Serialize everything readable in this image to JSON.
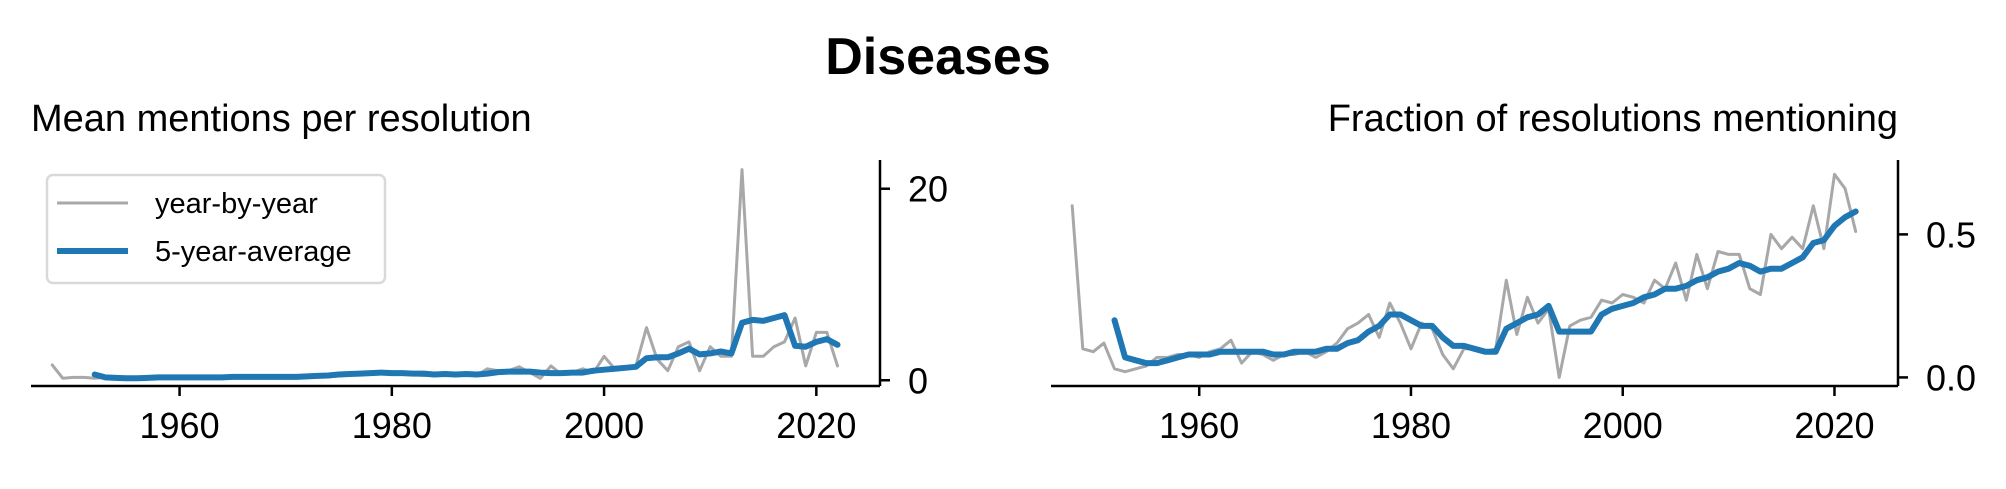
{
  "figure_title": "Diseases",
  "colors": {
    "yearly": "#a8a8a8",
    "average": "#1f77b4",
    "axis": "#000000",
    "legend_border": "#d9d9d9"
  },
  "legend": {
    "items": [
      {
        "label": "year-by-year",
        "series": "yearly"
      },
      {
        "label": "5-year-average",
        "series": "average"
      }
    ]
  },
  "chart_data": [
    {
      "type": "line",
      "title": "Mean mentions per resolution",
      "xlim": [
        1946,
        2026
      ],
      "ylim": [
        -0.6,
        23
      ],
      "xticks": [
        1960,
        1980,
        2000,
        2020
      ],
      "yticks": [
        0,
        20
      ],
      "ytick_labels": [
        "0",
        "20"
      ],
      "y_axis_side": "right",
      "grid": false,
      "legend_position": "upper-left",
      "series": [
        {
          "name": "year-by-year",
          "color_key": "yearly",
          "x": [
            1948,
            1949,
            1950,
            1951,
            1952,
            1953,
            1954,
            1955,
            1956,
            1957,
            1958,
            1959,
            1960,
            1961,
            1962,
            1963,
            1964,
            1965,
            1966,
            1967,
            1968,
            1969,
            1970,
            1971,
            1972,
            1973,
            1974,
            1975,
            1976,
            1977,
            1978,
            1979,
            1980,
            1981,
            1982,
            1983,
            1984,
            1985,
            1986,
            1987,
            1988,
            1989,
            1990,
            1991,
            1992,
            1993,
            1994,
            1995,
            1996,
            1997,
            1998,
            1999,
            2000,
            2001,
            2002,
            2003,
            2004,
            2005,
            2006,
            2007,
            2008,
            2009,
            2010,
            2011,
            2012,
            2013,
            2014,
            2015,
            2016,
            2017,
            2018,
            2019,
            2020,
            2021,
            2022
          ],
          "y": [
            1.6,
            0.2,
            0.3,
            0.3,
            0.2,
            0.3,
            0.2,
            0.3,
            0.2,
            0.3,
            0.3,
            0.3,
            0.3,
            0.4,
            0.4,
            0.3,
            0.4,
            0.4,
            0.4,
            0.4,
            0.4,
            0.3,
            0.4,
            0.4,
            0.4,
            0.5,
            0.6,
            0.6,
            0.8,
            0.7,
            0.8,
            0.8,
            0.6,
            0.8,
            0.6,
            0.5,
            0.7,
            0.5,
            0.6,
            0.7,
            0.5,
            1.2,
            1.0,
            1.0,
            1.4,
            0.8,
            0.2,
            1.5,
            0.6,
            0.8,
            1.2,
            0.8,
            2.5,
            1.2,
            1.4,
            1.5,
            5.5,
            2.2,
            1.0,
            3.5,
            4.0,
            1.0,
            3.5,
            2.5,
            2.5,
            22.0,
            2.5,
            2.5,
            3.5,
            4.0,
            6.5,
            1.5,
            5.0,
            5.0,
            1.5
          ]
        },
        {
          "name": "5-year-average",
          "color_key": "average",
          "x": [
            1952,
            1953,
            1954,
            1955,
            1956,
            1957,
            1958,
            1959,
            1960,
            1961,
            1962,
            1963,
            1964,
            1965,
            1966,
            1967,
            1968,
            1969,
            1970,
            1971,
            1972,
            1973,
            1974,
            1975,
            1976,
            1977,
            1978,
            1979,
            1980,
            1981,
            1982,
            1983,
            1984,
            1985,
            1986,
            1987,
            1988,
            1989,
            1990,
            1991,
            1992,
            1993,
            1994,
            1995,
            1996,
            1997,
            1998,
            1999,
            2000,
            2001,
            2002,
            2003,
            2004,
            2005,
            2006,
            2007,
            2008,
            2009,
            2010,
            2011,
            2012,
            2013,
            2014,
            2015,
            2016,
            2017,
            2018,
            2019,
            2020,
            2021,
            2022
          ],
          "y": [
            0.6,
            0.3,
            0.25,
            0.2,
            0.2,
            0.25,
            0.3,
            0.3,
            0.3,
            0.3,
            0.3,
            0.3,
            0.3,
            0.35,
            0.35,
            0.35,
            0.35,
            0.35,
            0.35,
            0.35,
            0.4,
            0.45,
            0.5,
            0.6,
            0.65,
            0.7,
            0.75,
            0.8,
            0.75,
            0.75,
            0.7,
            0.7,
            0.6,
            0.65,
            0.6,
            0.65,
            0.6,
            0.7,
            0.85,
            0.9,
            0.9,
            0.9,
            0.8,
            0.75,
            0.75,
            0.8,
            0.8,
            1.0,
            1.1,
            1.2,
            1.3,
            1.4,
            2.3,
            2.4,
            2.4,
            2.8,
            3.3,
            2.7,
            2.8,
            3.0,
            2.8,
            6.0,
            6.3,
            6.2,
            6.5,
            6.8,
            3.6,
            3.5,
            4.0,
            4.3,
            3.7
          ]
        }
      ]
    },
    {
      "type": "line",
      "title": "Fraction of resolutions mentioning",
      "xlim": [
        1946,
        2026
      ],
      "ylim": [
        -0.03,
        0.76
      ],
      "xticks": [
        1960,
        1980,
        2000,
        2020
      ],
      "yticks": [
        0,
        0.5
      ],
      "ytick_labels": [
        "0.0",
        "0.5"
      ],
      "y_axis_side": "right",
      "grid": false,
      "series": [
        {
          "name": "year-by-year",
          "color_key": "yearly",
          "x": [
            1948,
            1949,
            1950,
            1951,
            1952,
            1953,
            1954,
            1955,
            1956,
            1957,
            1958,
            1959,
            1960,
            1961,
            1962,
            1963,
            1964,
            1965,
            1966,
            1967,
            1968,
            1969,
            1970,
            1971,
            1972,
            1973,
            1974,
            1975,
            1976,
            1977,
            1978,
            1979,
            1980,
            1981,
            1982,
            1983,
            1984,
            1985,
            1986,
            1987,
            1988,
            1989,
            1990,
            1991,
            1992,
            1993,
            1994,
            1995,
            1996,
            1997,
            1998,
            1999,
            2000,
            2001,
            2002,
            2003,
            2004,
            2005,
            2006,
            2007,
            2008,
            2009,
            2010,
            2011,
            2012,
            2013,
            2014,
            2015,
            2016,
            2017,
            2018,
            2019,
            2020,
            2021,
            2022
          ],
          "y": [
            0.6,
            0.1,
            0.09,
            0.12,
            0.03,
            0.02,
            0.03,
            0.04,
            0.07,
            0.07,
            0.08,
            0.08,
            0.07,
            0.09,
            0.1,
            0.13,
            0.05,
            0.09,
            0.08,
            0.06,
            0.08,
            0.08,
            0.09,
            0.07,
            0.09,
            0.12,
            0.17,
            0.19,
            0.22,
            0.14,
            0.26,
            0.19,
            0.1,
            0.19,
            0.17,
            0.08,
            0.03,
            0.1,
            0.1,
            0.09,
            0.1,
            0.34,
            0.15,
            0.28,
            0.19,
            0.24,
            0.0,
            0.18,
            0.2,
            0.21,
            0.27,
            0.26,
            0.29,
            0.28,
            0.26,
            0.34,
            0.31,
            0.4,
            0.27,
            0.43,
            0.31,
            0.44,
            0.43,
            0.43,
            0.31,
            0.29,
            0.5,
            0.45,
            0.49,
            0.45,
            0.6,
            0.45,
            0.71,
            0.66,
            0.51
          ]
        },
        {
          "name": "5-year-average",
          "color_key": "average",
          "x": [
            1952,
            1953,
            1954,
            1955,
            1956,
            1957,
            1958,
            1959,
            1960,
            1961,
            1962,
            1963,
            1964,
            1965,
            1966,
            1967,
            1968,
            1969,
            1970,
            1971,
            1972,
            1973,
            1974,
            1975,
            1976,
            1977,
            1978,
            1979,
            1980,
            1981,
            1982,
            1983,
            1984,
            1985,
            1986,
            1987,
            1988,
            1989,
            1990,
            1991,
            1992,
            1993,
            1994,
            1995,
            1996,
            1997,
            1998,
            1999,
            2000,
            2001,
            2002,
            2003,
            2004,
            2005,
            2006,
            2007,
            2008,
            2009,
            2010,
            2011,
            2012,
            2013,
            2014,
            2015,
            2016,
            2017,
            2018,
            2019,
            2020,
            2021,
            2022
          ],
          "y": [
            0.2,
            0.07,
            0.06,
            0.05,
            0.05,
            0.06,
            0.07,
            0.08,
            0.08,
            0.08,
            0.09,
            0.09,
            0.09,
            0.09,
            0.09,
            0.08,
            0.08,
            0.09,
            0.09,
            0.09,
            0.1,
            0.1,
            0.12,
            0.13,
            0.16,
            0.18,
            0.22,
            0.22,
            0.2,
            0.18,
            0.18,
            0.14,
            0.11,
            0.11,
            0.1,
            0.09,
            0.09,
            0.17,
            0.19,
            0.21,
            0.22,
            0.25,
            0.16,
            0.16,
            0.16,
            0.16,
            0.22,
            0.24,
            0.25,
            0.26,
            0.28,
            0.29,
            0.31,
            0.31,
            0.32,
            0.34,
            0.35,
            0.37,
            0.38,
            0.4,
            0.39,
            0.37,
            0.38,
            0.38,
            0.4,
            0.42,
            0.47,
            0.48,
            0.53,
            0.56,
            0.58
          ]
        }
      ]
    }
  ]
}
